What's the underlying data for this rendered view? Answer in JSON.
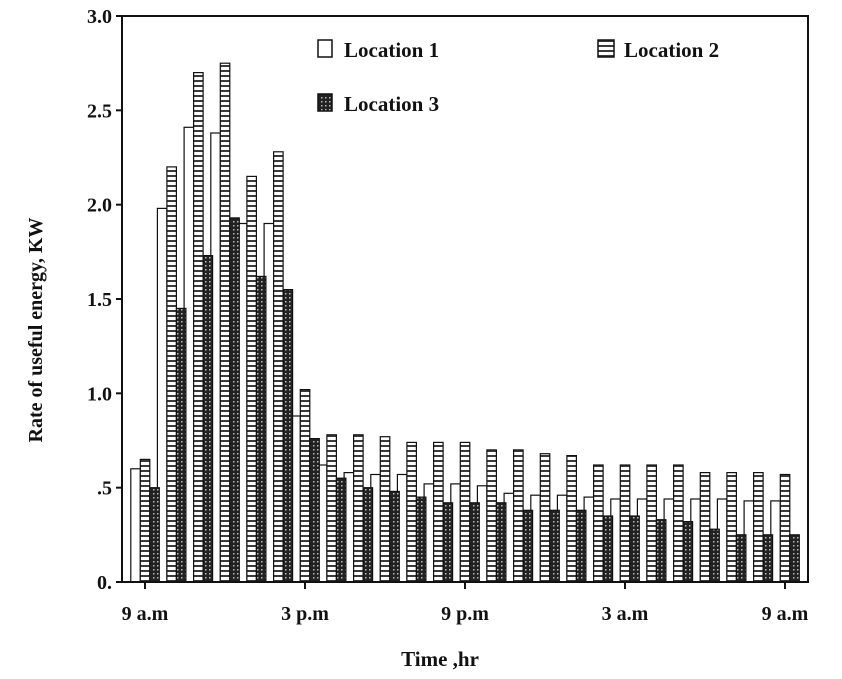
{
  "chart_data": {
    "type": "bar",
    "title": "",
    "xlabel": "Time ,hr",
    "ylabel": "Rate of useful energy, KW",
    "ylim": [
      0,
      3.0
    ],
    "y_ticks": [
      0,
      0.5,
      1.0,
      1.5,
      2.0,
      2.5,
      3.0
    ],
    "y_tick_labels": [
      "0.",
      ".5",
      "1.0",
      "1.5",
      "2.0",
      "2.5",
      "3.0"
    ],
    "x_tick_labels": [
      "9 a.m",
      "3 p.m",
      "9 p.m",
      "3 a.m",
      "9 a.m"
    ],
    "x_tick_hours": [
      0,
      6,
      12,
      18,
      24
    ],
    "categories": [
      "0",
      "1",
      "2",
      "3",
      "4",
      "5",
      "6",
      "7",
      "8",
      "9",
      "10",
      "11",
      "12",
      "13",
      "14",
      "15",
      "16",
      "17",
      "18",
      "19",
      "20",
      "21",
      "22",
      "23",
      "24"
    ],
    "grid": false,
    "legend_position": "top",
    "series": [
      {
        "name": "Location 1",
        "pattern": "hollow",
        "values": [
          0.6,
          1.98,
          2.41,
          2.38,
          1.9,
          1.9,
          0.88,
          0.62,
          0.58,
          0.57,
          0.57,
          0.52,
          0.52,
          0.51,
          0.47,
          0.46,
          0.46,
          0.45,
          0.44,
          0.44,
          0.44,
          0.44,
          0.44,
          0.43,
          0.43
        ]
      },
      {
        "name": "Location 2",
        "pattern": "striped",
        "values": [
          0.65,
          2.2,
          2.7,
          2.75,
          2.15,
          2.28,
          1.02,
          0.78,
          0.78,
          0.77,
          0.74,
          0.74,
          0.74,
          0.7,
          0.7,
          0.68,
          0.67,
          0.62,
          0.62,
          0.62,
          0.62,
          0.58,
          0.58,
          0.58,
          0.57
        ]
      },
      {
        "name": "Location 3",
        "pattern": "dark",
        "values": [
          0.5,
          1.45,
          1.73,
          1.93,
          1.62,
          1.55,
          0.76,
          0.55,
          0.5,
          0.48,
          0.45,
          0.42,
          0.42,
          0.42,
          0.38,
          0.38,
          0.38,
          0.35,
          0.35,
          0.33,
          0.32,
          0.28,
          0.25,
          0.25,
          0.25
        ]
      }
    ],
    "colors": {
      "axis": "#111111",
      "bar_fill": "#ffffff",
      "stripe": "#444444",
      "dark_fill": "#1a1a1a"
    }
  }
}
